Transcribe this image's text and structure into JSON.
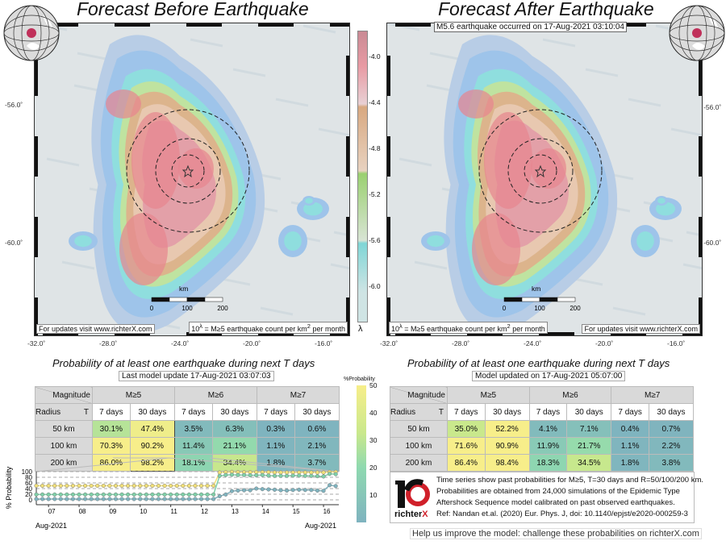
{
  "left_map": {
    "title": "Forecast Before Earthquake",
    "update_note": "For updates visit www.richterX.com",
    "unit_note_pre": "10",
    "unit_note_sup": "λ",
    "unit_note_mid": " = M≥5 earthquake count per km",
    "unit_note_sup2": "2",
    "unit_note_post": " per month"
  },
  "right_map": {
    "title": "Forecast After Earthquake",
    "event_label": "M5.6 earthquake occurred on 17-Aug-2021 03:10:04",
    "update_note": "For updates visit www.richterX.com"
  },
  "map_axes": {
    "lon_ticks": [
      "-32.0˚",
      "-28.0˚",
      "-24.0˚",
      "-20.0˚",
      "-16.0˚"
    ],
    "lat_ticks": [
      "-56.0˚",
      "-60.0˚"
    ],
    "scale_bar": [
      "0",
      "100",
      "200"
    ],
    "scale_unit": "km"
  },
  "rate_colorbar": {
    "ticks": [
      "-4.0",
      "-4.4",
      "-4.8",
      "-5.2",
      "-5.6",
      "-6.0"
    ],
    "label": "λ",
    "colors": [
      "#e08a92",
      "#dcb08a",
      "#a8d27a",
      "#82d8d8",
      "#8fb2e0",
      "#d0dcea"
    ]
  },
  "prob_colorbar": {
    "label": "%Probability",
    "ticks": [
      "50",
      "40",
      "30",
      "20",
      "10"
    ],
    "colors": [
      "#f7ee8a",
      "#8fd9b0",
      "#7fb3bf"
    ]
  },
  "left_table": {
    "title": "Probability of at least one earthquake during next T days",
    "updated": "Last model update 17-Aug-2021 03:07:03",
    "corner_top": "Magnitude",
    "corner_left": "Radius",
    "corner_right": "T",
    "magnitudes": [
      "M≥5",
      "M≥6",
      "M≥7"
    ],
    "periods": [
      "7 days",
      "30 days",
      "7 days",
      "30 days",
      "7 days",
      "30 days"
    ],
    "rows": [
      {
        "radius": "50 km",
        "values": [
          "30.1%",
          "47.4%",
          "3.5%",
          "6.3%",
          "0.3%",
          "0.6%"
        ]
      },
      {
        "radius": "100 km",
        "values": [
          "70.3%",
          "90.2%",
          "11.4%",
          "21.1%",
          "1.1%",
          "2.1%"
        ]
      },
      {
        "radius": "200 km",
        "values": [
          "86.0%",
          "98.2%",
          "18.1%",
          "34.4%",
          "1.8%",
          "3.7%"
        ]
      }
    ]
  },
  "right_table": {
    "title": "Probability of at least one earthquake during next T days",
    "updated": "Model updated on 17-Aug-2021 05:07:00",
    "corner_top": "Magnitude",
    "corner_left": "Radius",
    "corner_right": "T",
    "magnitudes": [
      "M≥5",
      "M≥6",
      "M≥7"
    ],
    "periods": [
      "7 days",
      "30 days",
      "7 days",
      "30 days",
      "7 days",
      "30 days"
    ],
    "rows": [
      {
        "radius": "50 km",
        "values": [
          "35.0%",
          "52.2%",
          "4.1%",
          "7.1%",
          "0.4%",
          "0.7%"
        ]
      },
      {
        "radius": "100 km",
        "values": [
          "71.6%",
          "90.9%",
          "11.9%",
          "21.7%",
          "1.1%",
          "2.2%"
        ]
      },
      {
        "radius": "200 km",
        "values": [
          "86.4%",
          "98.4%",
          "18.3%",
          "34.5%",
          "1.8%",
          "3.8%"
        ]
      }
    ]
  },
  "chart_data": {
    "type": "line",
    "ylabel": "% Probability",
    "ylim": [
      0,
      100
    ],
    "yticks": [
      "100",
      "80",
      "60",
      "40",
      "20",
      "0"
    ],
    "xlim": [
      6.6,
      16.5
    ],
    "xticks": [
      "07",
      "08",
      "09",
      "10",
      "11",
      "12",
      "13",
      "14",
      "15",
      "16"
    ],
    "xlabel_left": "Aug-2021",
    "xlabel_right": "Aug-2021",
    "grid": true,
    "x": [
      6.6,
      6.8,
      7.0,
      7.2,
      7.4,
      7.6,
      7.8,
      8.0,
      8.2,
      8.4,
      8.6,
      8.8,
      9.0,
      9.2,
      9.4,
      9.6,
      9.8,
      10.0,
      10.2,
      10.4,
      10.6,
      10.8,
      11.0,
      11.2,
      11.4,
      11.6,
      11.8,
      12.0,
      12.2,
      12.4,
      12.6,
      12.8,
      13.0,
      13.2,
      13.4,
      13.6,
      13.8,
      14.0,
      14.2,
      14.4,
      14.6,
      14.8,
      15.0,
      15.2,
      15.4,
      15.6,
      15.8,
      16.0,
      16.2,
      16.4
    ],
    "series": [
      {
        "color": "#f2e07a",
        "values": [
          50,
          50,
          50,
          50,
          50,
          50,
          50,
          50,
          50,
          50,
          50,
          50,
          50,
          50,
          50,
          50,
          50,
          50,
          50,
          50,
          50,
          50,
          50,
          50,
          50,
          50,
          50,
          50,
          50,
          50,
          97,
          98,
          99,
          98,
          98,
          98,
          98,
          98,
          98,
          97,
          97,
          97,
          97,
          97,
          97,
          97,
          97,
          97,
          99,
          99
        ]
      },
      {
        "color": "#7fd0a8",
        "values": [
          19,
          19,
          19,
          19,
          19,
          19,
          19,
          19,
          19,
          19,
          19,
          19,
          19,
          19,
          19,
          19,
          19,
          19,
          19,
          19,
          19,
          19,
          19,
          19,
          19,
          19,
          19,
          19,
          19,
          19,
          85,
          88,
          89,
          88,
          88,
          87,
          87,
          88,
          86,
          85,
          85,
          85,
          86,
          86,
          85,
          85,
          84,
          83,
          92,
          91
        ]
      },
      {
        "color": "#7fb3bf",
        "values": [
          3,
          3,
          3,
          3,
          3,
          3,
          3,
          3,
          3,
          3,
          3,
          3,
          3,
          3,
          3,
          3,
          3,
          3,
          3,
          3,
          3,
          3,
          3,
          3,
          3,
          3,
          3,
          3,
          3,
          3,
          13,
          19,
          31,
          33,
          34,
          34,
          40,
          38,
          37,
          36,
          34,
          33,
          35,
          36,
          35,
          35,
          33,
          32,
          52,
          49
        ]
      }
    ]
  },
  "info": {
    "logo": "richterX",
    "lines": [
      "Time series show past probabilities for M≥5, T=30 days and R=50/100/200 km.",
      "Probabilities are obtained from 24,000 simulations of the Epidemic Type",
      "Aftershock Sequence model calibrated on past observed earthquakes.",
      "Ref: Nandan et.al. (2020) Eur. Phys. J, doi: 10.1140/epjst/e2020-000259-3"
    ]
  },
  "help_text": "Help us improve the model: challenge these probabilities on richterX.com",
  "accent": {
    "epicenter": "#c0305a",
    "logo_red": "#d0202a"
  }
}
